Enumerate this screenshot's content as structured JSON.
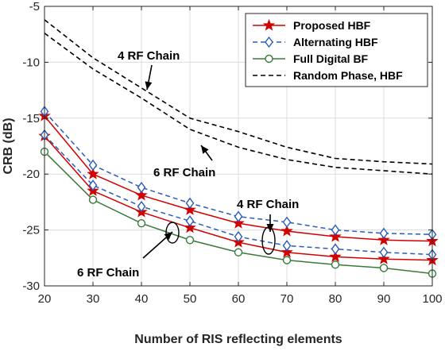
{
  "chart_data": {
    "type": "line",
    "xlabel": "Number of RIS reflecting elements",
    "ylabel": "CRB (dB)",
    "xlim": [
      20,
      100
    ],
    "ylim": [
      -30,
      -5
    ],
    "xticks": [
      20,
      30,
      40,
      50,
      60,
      70,
      80,
      90,
      100
    ],
    "yticks": [
      -30,
      -25,
      -20,
      -15,
      -10,
      -5
    ],
    "x": [
      20,
      30,
      40,
      50,
      60,
      70,
      80,
      90,
      100
    ],
    "grid": true,
    "legend_position": "top-right",
    "series": [
      {
        "name": "Proposed HBF",
        "group": "4 RF Chain",
        "color": "#d40000",
        "marker": "star",
        "dash": "solid",
        "values": [
          -14.8,
          -20.0,
          -21.9,
          -23.2,
          -24.4,
          -25.1,
          -25.6,
          -25.9,
          -26.0
        ]
      },
      {
        "name": "Proposed HBF",
        "group": "6 RF Chain",
        "color": "#d40000",
        "marker": "star",
        "dash": "solid",
        "values": [
          -16.6,
          -21.5,
          -23.4,
          -24.8,
          -26.1,
          -27.0,
          -27.4,
          -27.6,
          -27.7
        ]
      },
      {
        "name": "Alternating HBF",
        "group": "4 RF Chain",
        "color": "#2a5cb8",
        "marker": "diamond",
        "dash": "dashed",
        "values": [
          -14.4,
          -19.2,
          -21.2,
          -22.6,
          -23.8,
          -24.3,
          -25.0,
          -25.3,
          -25.4
        ]
      },
      {
        "name": "Alternating HBF",
        "group": "6 RF Chain",
        "color": "#2a5cb8",
        "marker": "diamond",
        "dash": "dashed",
        "values": [
          -16.5,
          -21.0,
          -22.9,
          -24.2,
          -25.6,
          -26.4,
          -26.7,
          -27.0,
          -27.2
        ]
      },
      {
        "name": "Full Digital BF",
        "color": "#3a7a3a",
        "marker": "circle",
        "dash": "solid",
        "values": [
          -18.0,
          -22.3,
          -24.4,
          -25.9,
          -27.0,
          -27.7,
          -28.1,
          -28.4,
          -28.9
        ]
      },
      {
        "name": "Random Phase, HBF",
        "group": "4 RF Chain",
        "color": "#000000",
        "marker": "none",
        "dash": "dashed",
        "values": [
          -6.2,
          -9.6,
          -12.3,
          -15.0,
          -16.2,
          -17.6,
          -18.6,
          -18.9,
          -19.1
        ]
      },
      {
        "name": "Random Phase, HBF",
        "group": "6 RF Chain",
        "color": "#000000",
        "marker": "none",
        "dash": "dashed",
        "values": [
          -7.4,
          -10.6,
          -13.2,
          -16.0,
          -17.6,
          -18.7,
          -19.4,
          -19.7,
          -20.0
        ]
      }
    ],
    "legend": [
      "Proposed HBF",
      "Alternating HBF",
      "Full Digital BF",
      "Random Phase, HBF"
    ],
    "annotations": [
      {
        "text": "4 RF Chain",
        "target": "Random Phase, HBF (4 RF Chain)"
      },
      {
        "text": "6 RF Chain",
        "target": "Random Phase, HBF (6 RF Chain)"
      },
      {
        "text": "4 RF Chain",
        "target": "HBF curves, upper pair"
      },
      {
        "text": "6 RF Chain",
        "target": "HBF curves, lower pair"
      }
    ]
  }
}
